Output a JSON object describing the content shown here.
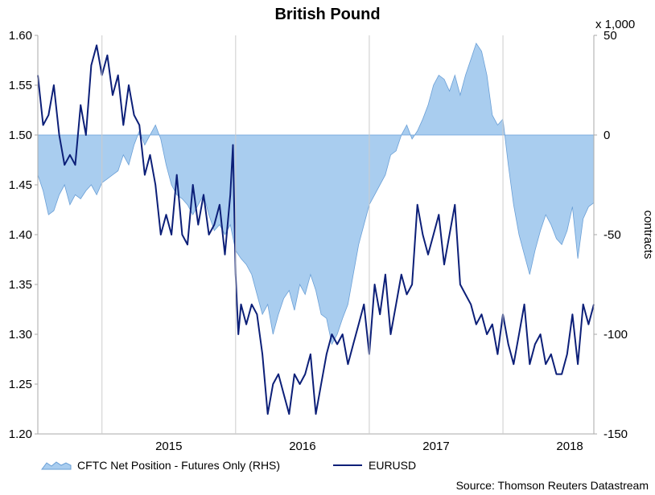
{
  "chart_data": {
    "type": "line",
    "title": "British Pound",
    "y_right_label": "contracts",
    "y_right_unit": "x 1,000",
    "source": "Source: Thomson Reuters Datastream",
    "x_tick_labels": [
      "2015",
      "2016",
      "2017",
      "2018"
    ],
    "y_left_ticks": [
      "1.20",
      "1.25",
      "1.30",
      "1.35",
      "1.40",
      "1.45",
      "1.50",
      "1.55",
      "1.60"
    ],
    "y_right_ticks": [
      "50",
      "0",
      "-50",
      "-100",
      "-150"
    ],
    "x_range": [
      2014.52,
      2018.68
    ],
    "y_left_range": [
      1.2,
      1.6
    ],
    "y_right_range": [
      -150,
      50
    ],
    "grid": false,
    "legend_position": "bottom",
    "colors": {
      "area_fill": "#a9cdef",
      "area_stroke": "#6a9fd6",
      "line": "#0c1f78",
      "axis": "#aaaaaa",
      "tick_guides": "#cccccc"
    },
    "series": [
      {
        "name": "CFTC Net Position - Futures Only (RHS)",
        "kind": "area",
        "axis": "right",
        "x": [
          2014.52,
          2014.56,
          2014.6,
          2014.64,
          2014.68,
          2014.72,
          2014.76,
          2014.8,
          2014.84,
          2014.88,
          2014.92,
          2014.96,
          2015.0,
          2015.04,
          2015.08,
          2015.12,
          2015.16,
          2015.2,
          2015.24,
          2015.28,
          2015.32,
          2015.36,
          2015.4,
          2015.44,
          2015.48,
          2015.52,
          2015.56,
          2015.6,
          2015.64,
          2015.68,
          2015.72,
          2015.76,
          2015.8,
          2015.84,
          2015.88,
          2015.92,
          2015.96,
          2016.0,
          2016.04,
          2016.08,
          2016.12,
          2016.16,
          2016.2,
          2016.24,
          2016.28,
          2016.32,
          2016.36,
          2016.4,
          2016.44,
          2016.48,
          2016.52,
          2016.56,
          2016.6,
          2016.64,
          2016.68,
          2016.72,
          2016.76,
          2016.8,
          2016.84,
          2016.88,
          2016.92,
          2016.96,
          2017.0,
          2017.04,
          2017.08,
          2017.12,
          2017.16,
          2017.2,
          2017.24,
          2017.28,
          2017.32,
          2017.36,
          2017.4,
          2017.44,
          2017.48,
          2017.52,
          2017.56,
          2017.6,
          2017.64,
          2017.68,
          2017.72,
          2017.76,
          2017.8,
          2017.84,
          2017.88,
          2017.92,
          2017.96,
          2018.0,
          2018.04,
          2018.08,
          2018.12,
          2018.16,
          2018.2,
          2018.24,
          2018.28,
          2018.32,
          2018.36,
          2018.4,
          2018.44,
          2018.48,
          2018.52,
          2018.56,
          2018.6,
          2018.64,
          2018.68
        ],
        "values": [
          -20,
          -28,
          -40,
          -38,
          -30,
          -25,
          -35,
          -30,
          -32,
          -28,
          -25,
          -30,
          -24,
          -22,
          -20,
          -18,
          -10,
          -15,
          -5,
          2,
          -5,
          0,
          5,
          -2,
          -15,
          -25,
          -30,
          -32,
          -35,
          -40,
          -35,
          -30,
          -40,
          -48,
          -45,
          -50,
          -45,
          -58,
          -62,
          -65,
          -70,
          -80,
          -90,
          -85,
          -100,
          -90,
          -82,
          -78,
          -88,
          -75,
          -80,
          -70,
          -78,
          -90,
          -92,
          -105,
          -100,
          -92,
          -85,
          -70,
          -55,
          -45,
          -35,
          -30,
          -25,
          -20,
          -10,
          -8,
          0,
          5,
          -2,
          2,
          8,
          15,
          25,
          30,
          28,
          22,
          30,
          20,
          30,
          38,
          46,
          42,
          30,
          10,
          5,
          8,
          -15,
          -35,
          -50,
          -60,
          -70,
          -58,
          -48,
          -40,
          -45,
          -52,
          -55,
          -48,
          -36,
          -62,
          -42,
          -36,
          -34
        ]
      },
      {
        "name": "EURUSD",
        "kind": "line",
        "axis": "left",
        "x": [
          2014.52,
          2014.56,
          2014.6,
          2014.64,
          2014.68,
          2014.72,
          2014.76,
          2014.8,
          2014.84,
          2014.88,
          2014.92,
          2014.96,
          2015.0,
          2015.04,
          2015.08,
          2015.12,
          2015.16,
          2015.2,
          2015.24,
          2015.28,
          2015.32,
          2015.36,
          2015.4,
          2015.44,
          2015.48,
          2015.52,
          2015.56,
          2015.6,
          2015.64,
          2015.68,
          2015.72,
          2015.76,
          2015.8,
          2015.84,
          2015.88,
          2015.92,
          2015.96,
          2015.98,
          2016.0,
          2016.02,
          2016.04,
          2016.08,
          2016.12,
          2016.16,
          2016.2,
          2016.24,
          2016.28,
          2016.32,
          2016.36,
          2016.4,
          2016.44,
          2016.48,
          2016.52,
          2016.56,
          2016.6,
          2016.64,
          2016.68,
          2016.72,
          2016.76,
          2016.8,
          2016.84,
          2016.88,
          2016.92,
          2016.96,
          2017.0,
          2017.04,
          2017.08,
          2017.12,
          2017.16,
          2017.2,
          2017.24,
          2017.28,
          2017.32,
          2017.36,
          2017.4,
          2017.44,
          2017.48,
          2017.52,
          2017.56,
          2017.6,
          2017.64,
          2017.68,
          2017.72,
          2017.76,
          2017.8,
          2017.84,
          2017.88,
          2017.92,
          2017.96,
          2018.0,
          2018.04,
          2018.08,
          2018.12,
          2018.16,
          2018.2,
          2018.24,
          2018.28,
          2018.32,
          2018.36,
          2018.4,
          2018.44,
          2018.48,
          2018.52,
          2018.56,
          2018.6,
          2018.64,
          2018.68
        ],
        "values": [
          1.56,
          1.51,
          1.52,
          1.55,
          1.5,
          1.47,
          1.48,
          1.47,
          1.53,
          1.5,
          1.57,
          1.59,
          1.56,
          1.58,
          1.54,
          1.56,
          1.51,
          1.55,
          1.52,
          1.51,
          1.46,
          1.48,
          1.45,
          1.4,
          1.42,
          1.4,
          1.46,
          1.4,
          1.39,
          1.45,
          1.41,
          1.44,
          1.4,
          1.41,
          1.43,
          1.38,
          1.44,
          1.49,
          1.36,
          1.3,
          1.33,
          1.31,
          1.33,
          1.32,
          1.28,
          1.22,
          1.25,
          1.26,
          1.24,
          1.22,
          1.26,
          1.25,
          1.26,
          1.28,
          1.22,
          1.25,
          1.28,
          1.3,
          1.29,
          1.3,
          1.27,
          1.29,
          1.31,
          1.33,
          1.28,
          1.35,
          1.32,
          1.36,
          1.3,
          1.33,
          1.36,
          1.34,
          1.35,
          1.43,
          1.4,
          1.38,
          1.4,
          1.42,
          1.37,
          1.4,
          1.43,
          1.35,
          1.34,
          1.33,
          1.31,
          1.32,
          1.3,
          1.31,
          1.28,
          1.32,
          1.29,
          1.27,
          1.3,
          1.33,
          1.27,
          1.29,
          1.3,
          1.27,
          1.28,
          1.26,
          1.26,
          1.28,
          1.32,
          1.27,
          1.33,
          1.31,
          1.33
        ]
      }
    ]
  }
}
